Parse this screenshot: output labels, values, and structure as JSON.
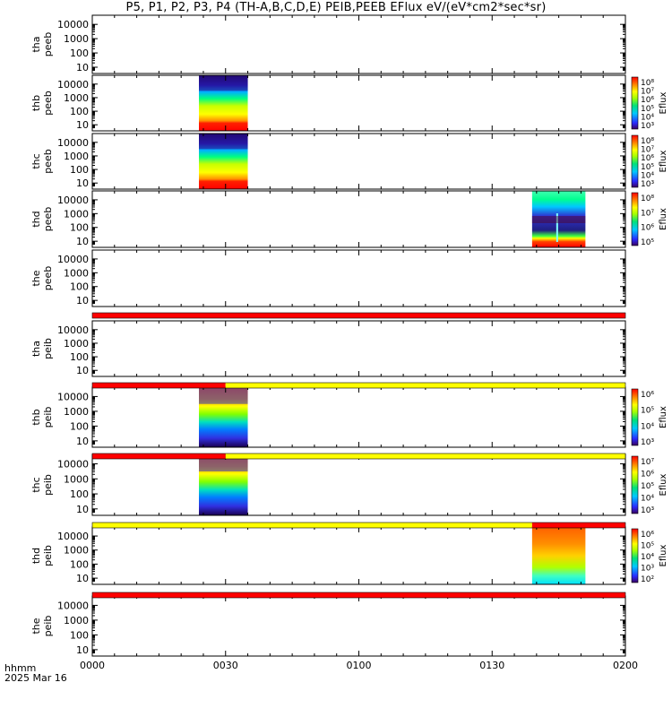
{
  "title": "P5, P1, P2, P3, P4 (TH-A,B,C,D,E) PEIB,PEEB EFlux eV/(eV*cm2*sec*sr)",
  "corner": {
    "line1": "hhmm",
    "line2": "2025 Mar 16"
  },
  "colors": {
    "quality_red": "#ff0000",
    "quality_yellow": "#ffff00",
    "axis": "#000000"
  },
  "chart_data": {
    "type": "heatmap",
    "title": "P5, P1, P2, P3, P4 (TH-A,B,C,D,E) PEIB,PEEB EFlux eV/(eV*cm2*sec*sr)",
    "xlabel": "",
    "x_range": [
      "0000",
      "0200"
    ],
    "x_ticks": [
      "0000",
      "0030",
      "0100",
      "0130",
      "0200"
    ],
    "y_scale": "log",
    "y_ticks": [
      "10",
      "100",
      "1000",
      "10000"
    ],
    "panels": [
      {
        "label": [
          "tha",
          "peeb"
        ],
        "data": null,
        "colorbar": null
      },
      {
        "label": [
          "thb",
          "peeb"
        ],
        "data": {
          "t_start": "0024",
          "t_end": "0035"
        },
        "colorbar": {
          "label": "Eflux",
          "ticks": [
            "10⁸",
            "10⁷",
            "10⁶",
            "10⁵",
            "10⁴",
            "10³"
          ]
        }
      },
      {
        "label": [
          "thc",
          "peeb"
        ],
        "data": {
          "t_start": "0024",
          "t_end": "0035"
        },
        "colorbar": {
          "label": "Eflux",
          "ticks": [
            "10⁸",
            "10⁷",
            "10⁶",
            "10⁵",
            "10⁴",
            "10³"
          ]
        }
      },
      {
        "label": [
          "thd",
          "peeb"
        ],
        "data": {
          "t_start": "0139",
          "t_end": "0151"
        },
        "colorbar": {
          "label": "Eflux",
          "ticks": [
            "10⁸",
            "10⁷",
            "10⁶",
            "10⁵"
          ]
        }
      },
      {
        "label": [
          "the",
          "peeb"
        ],
        "data": null,
        "colorbar": null
      },
      {
        "label": [
          "tha",
          "peib"
        ],
        "data": null,
        "colorbar": null
      },
      {
        "label": [
          "thb",
          "peib"
        ],
        "data": {
          "t_start": "0024",
          "t_end": "0035"
        },
        "colorbar": {
          "label": "Eflux",
          "ticks": [
            "10⁶",
            "10⁵",
            "10⁴",
            "10³"
          ]
        }
      },
      {
        "label": [
          "thc",
          "peib"
        ],
        "data": {
          "t_start": "0024",
          "t_end": "0035"
        },
        "colorbar": {
          "label": "Eflux",
          "ticks": [
            "10⁷",
            "10⁶",
            "10⁵",
            "10⁴",
            "10³"
          ]
        }
      },
      {
        "label": [
          "thd",
          "peib"
        ],
        "data": {
          "t_start": "0139",
          "t_end": "0151"
        },
        "colorbar": {
          "label": "Eflux",
          "ticks": [
            "10⁶",
            "10⁵",
            "10⁴",
            "10³",
            "10²"
          ]
        }
      },
      {
        "label": [
          "the",
          "peib"
        ],
        "data": null,
        "colorbar": null
      }
    ],
    "quality_bars": [
      {
        "segments": [
          {
            "from": "0000",
            "to": "0200",
            "color": "red"
          }
        ]
      },
      {
        "segments": [
          {
            "from": "0000",
            "to": "0030",
            "color": "red"
          },
          {
            "from": "0030",
            "to": "0200",
            "color": "yellow"
          }
        ]
      },
      {
        "segments": [
          {
            "from": "0000",
            "to": "0030",
            "color": "red"
          },
          {
            "from": "0030",
            "to": "0200",
            "color": "yellow"
          }
        ]
      },
      {
        "segments": [
          {
            "from": "0000",
            "to": "0139",
            "color": "yellow"
          },
          {
            "from": "0139",
            "to": "0200",
            "color": "red"
          }
        ]
      },
      {
        "segments": [
          {
            "from": "0000",
            "to": "0200",
            "color": "red"
          }
        ]
      }
    ]
  }
}
